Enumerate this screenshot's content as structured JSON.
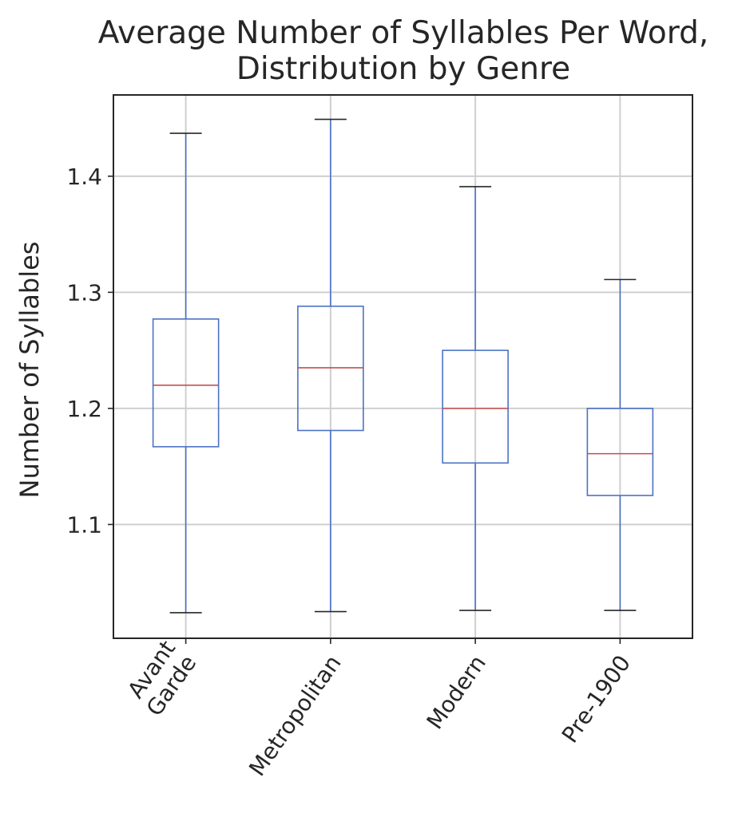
{
  "chart_data": {
    "type": "box",
    "title": [
      "Average Number of Syllables Per Word,",
      "Distribution by Genre"
    ],
    "ylabel": "Number of Syllables",
    "xlabel": "",
    "ylim": [
      1.002,
      1.47
    ],
    "yticks": [
      1.1,
      1.2,
      1.3,
      1.4
    ],
    "ytick_labels": [
      "1.1",
      "1.2",
      "1.3",
      "1.4"
    ],
    "grid": true,
    "categories": [
      {
        "label_lines": [
          "Avant",
          "Garde"
        ],
        "whisker_low": 1.024,
        "q1": 1.167,
        "median": 1.22,
        "q3": 1.277,
        "whisker_high": 1.437
      },
      {
        "label_lines": [
          "Metropolitan"
        ],
        "whisker_low": 1.025,
        "q1": 1.181,
        "median": 1.235,
        "q3": 1.288,
        "whisker_high": 1.449
      },
      {
        "label_lines": [
          "Modern"
        ],
        "whisker_low": 1.026,
        "q1": 1.153,
        "median": 1.2,
        "q3": 1.25,
        "whisker_high": 1.391
      },
      {
        "label_lines": [
          "Pre-1900"
        ],
        "whisker_low": 1.026,
        "q1": 1.125,
        "median": 1.161,
        "q3": 1.2,
        "whisker_high": 1.311
      }
    ],
    "colors": {
      "box": "#4c72c4",
      "median": "#c44e52",
      "cap": "#262626",
      "grid": "#cfcfcf",
      "frame": "#262626"
    }
  }
}
